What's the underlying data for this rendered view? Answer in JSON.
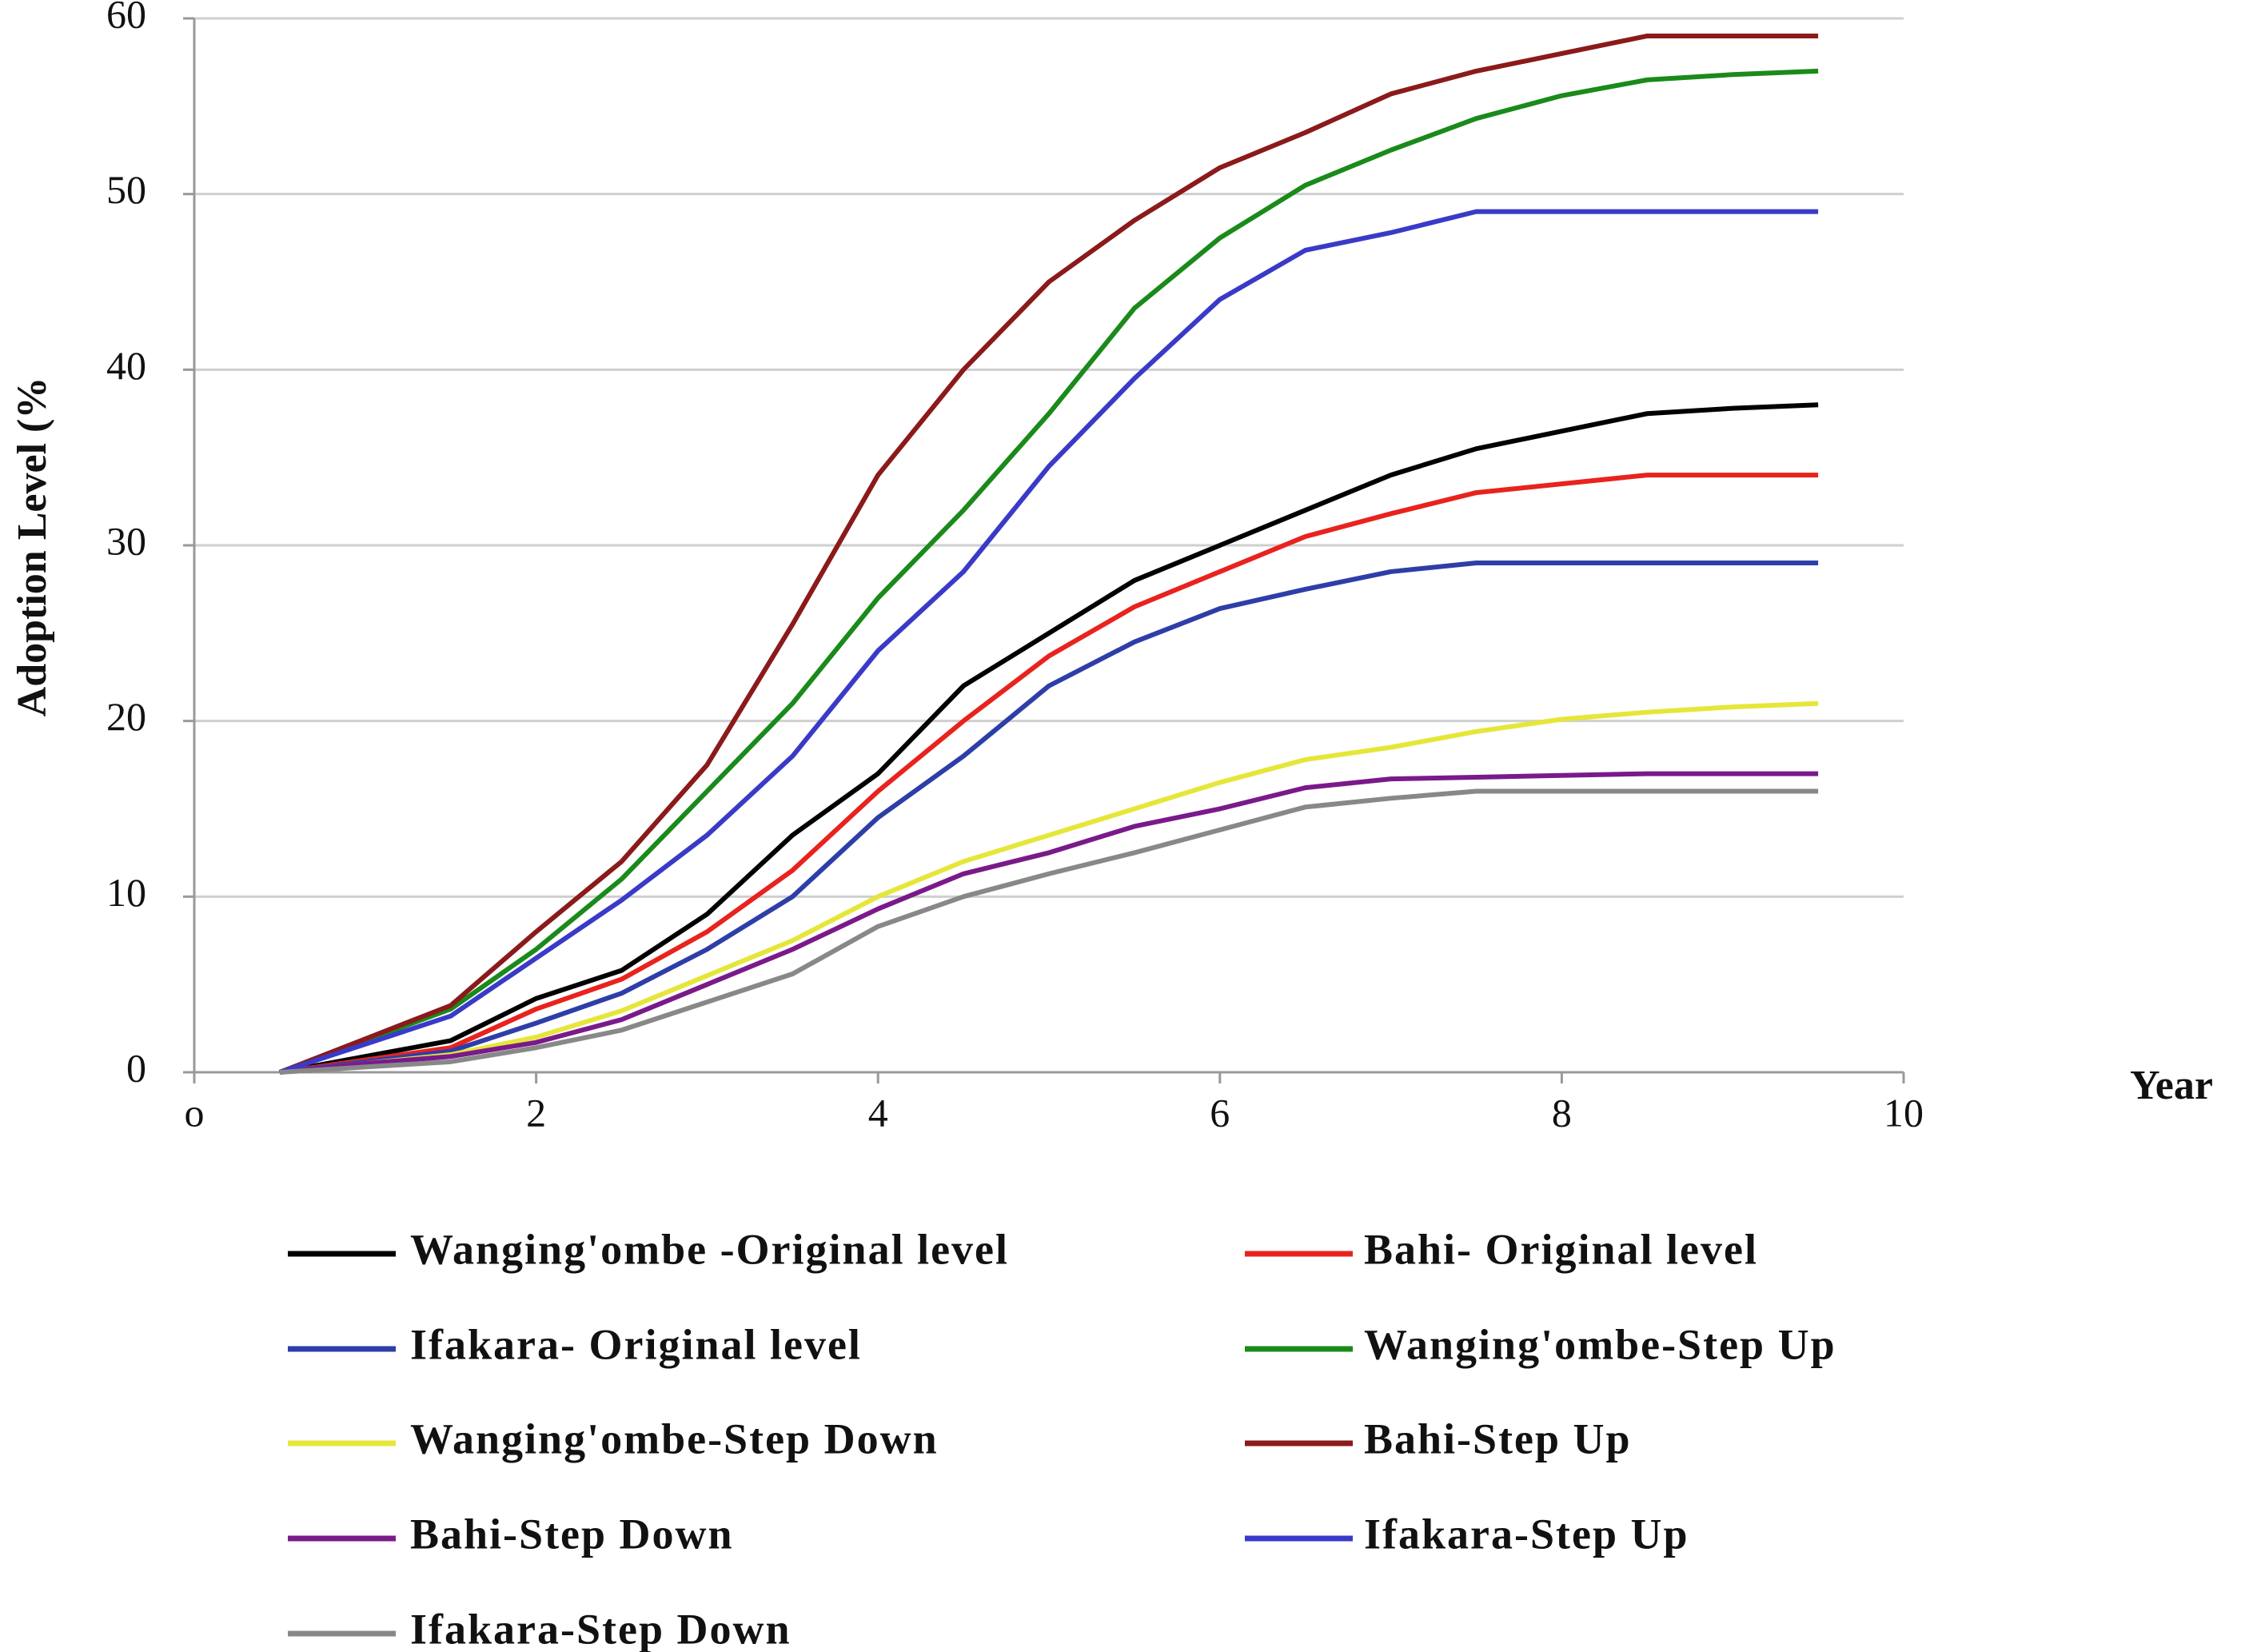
{
  "chart_data": {
    "type": "line",
    "y_label": "Adoption Level (%",
    "x_label": "Year",
    "x": [
      0.5,
      1,
      1.5,
      2,
      2.5,
      3,
      3.5,
      4,
      4.5,
      5,
      5.5,
      6,
      6.5,
      7,
      7.5,
      8,
      8.5,
      9,
      9.5
    ],
    "xlim": [
      0,
      10
    ],
    "xticks": [
      {
        "value": 0,
        "label": "o"
      },
      2,
      4,
      6,
      8,
      10
    ],
    "ylim": [
      0,
      60
    ],
    "yticks": [
      0,
      10,
      20,
      30,
      40,
      50,
      60
    ],
    "grid": true,
    "series": [
      {
        "name": "Wanging'ombe -Original level",
        "color": "#000000",
        "values": [
          0,
          0.9,
          1.8,
          4.2,
          5.8,
          9,
          13.5,
          17,
          22,
          25,
          28,
          30,
          32,
          34,
          35.5,
          36.5,
          37.5,
          37.8,
          38
        ]
      },
      {
        "name": "Bahi- Original level",
        "color": "#e8231e",
        "values": [
          0,
          0.7,
          1.4,
          3.6,
          5.3,
          8,
          11.5,
          16,
          20,
          23.7,
          26.5,
          28.5,
          30.5,
          31.8,
          33,
          33.5,
          34,
          34,
          34
        ]
      },
      {
        "name": "Ifakara- Original level",
        "color": "#2e3ea8",
        "values": [
          0,
          0.6,
          1.2,
          2.8,
          4.5,
          7,
          10,
          14.5,
          18,
          22,
          24.5,
          26.4,
          27.5,
          28.5,
          29,
          29,
          29,
          29,
          29
        ]
      },
      {
        "name": "Wanging'ombe-Step Up",
        "color": "#1a8a1a",
        "values": [
          0,
          1.8,
          3.6,
          7,
          11,
          16,
          21,
          27,
          32,
          37.5,
          43.5,
          47.5,
          50.5,
          52.5,
          54.3,
          55.6,
          56.5,
          56.8,
          57
        ]
      },
      {
        "name": "Wanging'ombe-Step Down",
        "color": "#e6e63a",
        "values": [
          0,
          0.5,
          1,
          2,
          3.5,
          5.5,
          7.5,
          10,
          12,
          13.5,
          15,
          16.5,
          17.8,
          18.5,
          19.4,
          20.1,
          20.5,
          20.8,
          21
        ]
      },
      {
        "name": "Bahi-Step Up",
        "color": "#8b1a1a",
        "values": [
          0,
          1.9,
          3.8,
          8,
          12,
          17.5,
          25.5,
          34,
          40,
          45,
          48.5,
          51.5,
          53.5,
          55.7,
          57,
          58,
          59,
          59,
          59
        ]
      },
      {
        "name": "Bahi-Step Down",
        "color": "#7a1a8a",
        "values": [
          0,
          0.5,
          0.9,
          1.7,
          3,
          5,
          7,
          9.3,
          11.3,
          12.5,
          14,
          15,
          16.2,
          16.7,
          16.8,
          16.9,
          17,
          17,
          17
        ]
      },
      {
        "name": "Ifakara-Step Up",
        "color": "#3a3ac8",
        "values": [
          0,
          1.6,
          3.2,
          6.5,
          9.8,
          13.5,
          18,
          24,
          28.5,
          34.5,
          39.5,
          44,
          46.8,
          47.8,
          49,
          49,
          49,
          49,
          49
        ]
      },
      {
        "name": "Ifakara-Step Down",
        "color": "#888888",
        "values": [
          0,
          0.3,
          0.6,
          1.4,
          2.4,
          4,
          5.6,
          8.3,
          10,
          11.3,
          12.5,
          13.8,
          15.1,
          15.6,
          16,
          16,
          16,
          16,
          16
        ]
      }
    ]
  }
}
